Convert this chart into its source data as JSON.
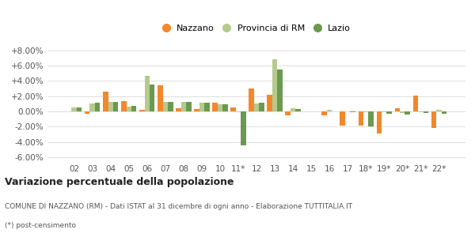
{
  "categories": [
    "02",
    "03",
    "04",
    "05",
    "06",
    "07",
    "08",
    "09",
    "10",
    "11*",
    "12",
    "13",
    "14",
    "15",
    "16",
    "17",
    "18*",
    "19*",
    "20*",
    "21*",
    "22*"
  ],
  "nazzano": [
    0.0,
    -0.3,
    2.6,
    1.4,
    0.2,
    3.4,
    0.4,
    0.3,
    1.1,
    0.5,
    3.0,
    2.2,
    -0.5,
    0.0,
    -0.5,
    -1.8,
    -1.8,
    -2.9,
    0.4,
    2.1,
    -2.2
  ],
  "provincia": [
    0.5,
    1.0,
    1.3,
    0.6,
    4.7,
    1.2,
    1.2,
    1.1,
    0.9,
    -0.1,
    1.0,
    6.8,
    0.4,
    0.0,
    0.2,
    0.0,
    -0.1,
    -0.1,
    -0.2,
    -0.1,
    0.2
  ],
  "lazio": [
    0.5,
    1.1,
    1.2,
    0.7,
    3.5,
    1.2,
    1.2,
    1.1,
    0.9,
    -4.4,
    1.1,
    5.5,
    0.3,
    0.0,
    0.0,
    -0.1,
    -2.0,
    -0.3,
    -0.4,
    -0.2,
    -0.3
  ],
  "color_nazzano": "#f4872a",
  "color_provincia": "#b5ca8d",
  "color_lazio": "#6b9a4e",
  "yticks": [
    -6.0,
    -4.0,
    -2.0,
    0.0,
    2.0,
    4.0,
    6.0,
    8.0
  ],
  "ylim": [
    -6.5,
    9.0
  ],
  "title": "Variazione percentuale della popolazione",
  "footnote1": "COMUNE DI NAZZANO (RM) - Dati ISTAT al 31 dicembre di ogni anno - Elaborazione TUTTITALIA.IT",
  "footnote2": "(*) post-censimento",
  "legend_labels": [
    "Nazzano",
    "Provincia di RM",
    "Lazio"
  ],
  "bg_color": "#ffffff",
  "grid_color": "#dddddd"
}
